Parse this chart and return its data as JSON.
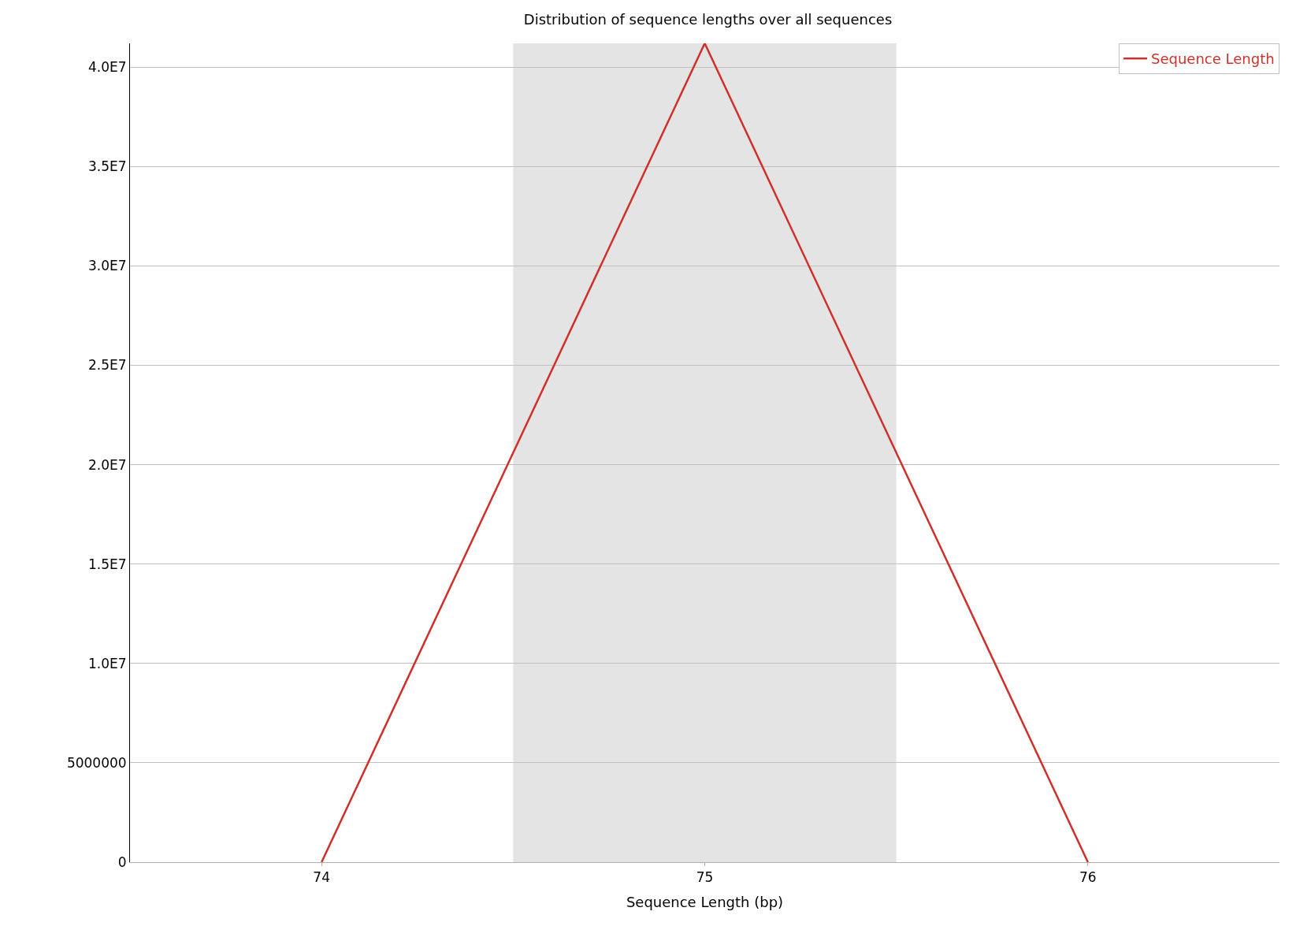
{
  "chart_data": {
    "type": "line",
    "title": "Distribution of sequence lengths over all sequences",
    "xlabel": "Sequence Length (bp)",
    "x": [
      74,
      75,
      76
    ],
    "series": [
      {
        "name": "Sequence Length",
        "color": "#d0302a",
        "values": [
          0,
          41200000,
          0
        ]
      }
    ],
    "xlim": [
      73.5,
      76.5
    ],
    "xticks": [
      74,
      75,
      76
    ],
    "ylim": [
      0,
      41200000
    ],
    "yticks": [
      0,
      5000000,
      {
        "value": 10000000,
        "label": "1.0E7"
      },
      {
        "value": 15000000,
        "label": "1.5E7"
      },
      {
        "value": 20000000,
        "label": "2.0E7"
      },
      {
        "value": 25000000,
        "label": "2.5E7"
      },
      {
        "value": 30000000,
        "label": "3.0E7"
      },
      {
        "value": 35000000,
        "label": "3.5E7"
      },
      {
        "value": 40000000,
        "label": "4.0E7"
      }
    ],
    "bands": [
      {
        "axis": "x",
        "from": 74.5,
        "to": 75.5,
        "color": "#e4e4e4"
      }
    ],
    "grid": "y",
    "legend": "top right",
    "marker": "none",
    "line_style": "solid"
  }
}
